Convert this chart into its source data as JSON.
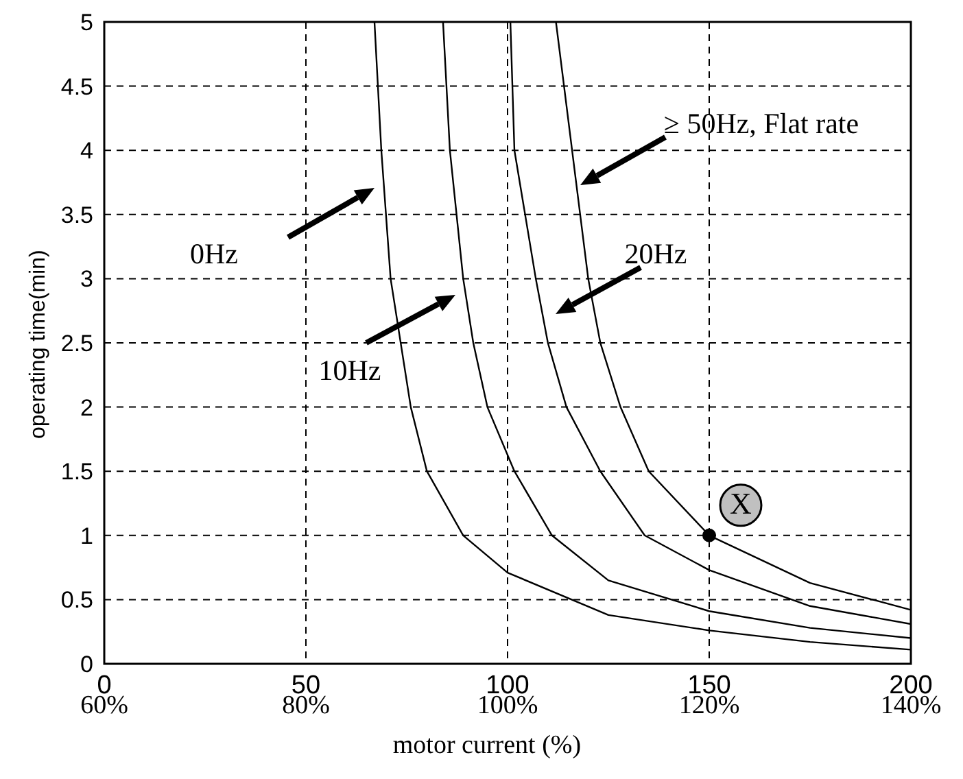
{
  "chart_data": {
    "type": "line",
    "xlabel": "motor current (%)",
    "ylabel": "operating time(min)",
    "xlim": [
      0,
      200
    ],
    "xticks": [
      0,
      50,
      100,
      150,
      200
    ],
    "x2lim": [
      60,
      140
    ],
    "x2ticks": [
      {
        "value": 60,
        "label": "60%"
      },
      {
        "value": 80,
        "label": "80%"
      },
      {
        "value": 100,
        "label": "100%"
      },
      {
        "value": 120,
        "label": "120%"
      },
      {
        "value": 140,
        "label": "140%"
      }
    ],
    "ylim": [
      0,
      5
    ],
    "yticks": [
      0,
      0.5,
      1,
      1.5,
      2,
      2.5,
      3,
      3.5,
      4,
      4.5,
      5
    ],
    "grid": true,
    "line_style": "solid",
    "series": [
      {
        "color": "#000000",
        "x": [
          67,
          68.7,
          71,
          76,
          80,
          89,
          100,
          125,
          150,
          175,
          200
        ],
        "values": [
          5,
          4,
          3,
          2,
          1.5,
          1,
          0.71,
          0.38,
          0.26,
          0.17,
          0.11
        ]
      },
      {
        "color": "#000000",
        "x": [
          84,
          85.7,
          89,
          91.5,
          95,
          101.7,
          111,
          125,
          150,
          175,
          200
        ],
        "values": [
          5,
          4,
          3,
          2.5,
          2,
          1.5,
          1,
          0.65,
          0.41,
          0.28,
          0.2
        ]
      },
      {
        "color": "#000000",
        "x": [
          100.7,
          101.7,
          107,
          110,
          114.6,
          123,
          134,
          150,
          175,
          200
        ],
        "values": [
          5,
          4,
          3,
          2.5,
          2,
          1.5,
          1,
          0.73,
          0.45,
          0.31
        ]
      },
      {
        "color": "#000000",
        "x": [
          112,
          116,
          120,
          123,
          128,
          135,
          150,
          175,
          200
        ],
        "values": [
          5,
          4,
          3,
          2.5,
          2,
          1.5,
          1,
          0.63,
          0.42
        ]
      },
      {
        "type": "scatter",
        "color": "#000000",
        "marker": "circle",
        "x": [
          150
        ],
        "values": [
          1
        ]
      }
    ],
    "annotations": [
      "0Hz",
      "10Hz",
      "20Hz",
      "≥ 50Hz, Flat rate",
      {
        "text": "X",
        "x": 150,
        "y": 1
      }
    ]
  }
}
